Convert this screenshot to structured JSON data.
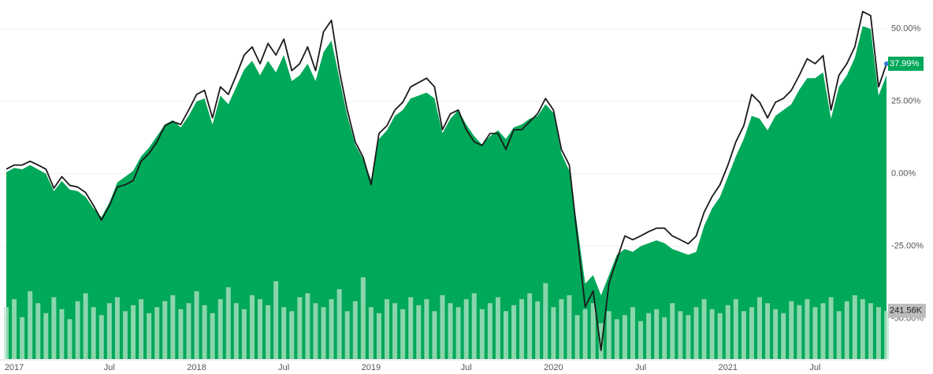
{
  "chart_data": {
    "type": "area_line_volume",
    "categories": [
      null,
      "2017",
      null,
      null,
      null,
      null,
      null,
      null,
      null,
      null,
      null,
      null,
      null,
      "Jul",
      null,
      null,
      null,
      null,
      null,
      null,
      null,
      null,
      null,
      null,
      "2018",
      null,
      null,
      null,
      null,
      null,
      null,
      null,
      null,
      null,
      null,
      "Jul",
      null,
      null,
      null,
      null,
      null,
      null,
      null,
      null,
      null,
      null,
      "2019",
      null,
      null,
      null,
      null,
      null,
      null,
      null,
      null,
      null,
      null,
      null,
      "Jul",
      null,
      null,
      null,
      null,
      null,
      null,
      null,
      null,
      null,
      null,
      "2020",
      null,
      null,
      null,
      null,
      null,
      null,
      null,
      null,
      null,
      null,
      "Jul",
      null,
      null,
      null,
      null,
      null,
      null,
      null,
      null,
      null,
      null,
      "2021",
      null,
      null,
      null,
      null,
      null,
      null,
      null,
      null,
      null,
      null,
      "Jul",
      null,
      null,
      null,
      null,
      null,
      null,
      null,
      null,
      null
    ],
    "series": [
      {
        "color": "#1a1a1a",
        "values": [
          1.6,
          3,
          3,
          4.3,
          3,
          1.6,
          -5,
          -1,
          -4,
          -4.6,
          -6.5,
          -11,
          -16,
          -11,
          -4.6,
          -3.8,
          -2.4,
          4.3,
          7,
          11,
          16.6,
          18,
          17,
          22,
          27.4,
          28.8,
          19.3,
          30,
          27.4,
          34,
          41,
          43.8,
          38,
          45,
          41,
          46.5,
          35.6,
          38,
          43.8,
          35.6,
          49,
          53,
          35.6,
          22,
          11,
          5.7,
          -3.8,
          13.9,
          16.6,
          22,
          24.7,
          30,
          31.5,
          33,
          30,
          15.2,
          20.7,
          22,
          15.2,
          11,
          9.8,
          13.9,
          13.9,
          8.4,
          15.2,
          15.2,
          18,
          20.7,
          26,
          22,
          8.4,
          3,
          -21.5,
          -46,
          -40.5,
          -61,
          -37.8,
          -29.6,
          -21.5,
          -22.8,
          -21.5,
          -20,
          -18.8,
          -18.8,
          -21.5,
          -22.8,
          -24.2,
          -21.5,
          -13.3,
          -7.9,
          -3.8,
          3,
          11,
          16.6,
          27.4,
          24.7,
          19.3,
          24.7,
          26,
          28.8,
          34,
          39.7,
          38,
          40.8,
          22,
          34,
          38,
          43.8,
          56,
          54.6,
          30,
          37.99
        ],
        "value_labels": [
          null,
          null,
          null,
          null,
          null,
          null,
          null,
          null,
          null,
          null,
          null,
          null,
          null,
          null,
          null,
          null,
          null,
          null,
          null,
          null,
          null,
          null,
          null,
          null,
          null,
          null,
          null,
          null,
          null,
          null,
          null,
          null,
          null,
          null,
          null,
          null,
          null,
          null,
          null,
          null,
          null,
          null,
          null,
          null,
          null,
          null,
          null,
          null,
          null,
          null,
          null,
          null,
          null,
          null,
          null,
          null,
          null,
          null,
          null,
          null,
          null,
          null,
          null,
          null,
          null,
          null,
          null,
          null,
          null,
          null,
          null,
          null,
          null,
          null,
          null,
          null,
          null,
          null,
          null,
          null,
          null,
          null,
          null,
          null,
          null,
          null,
          null,
          null,
          null,
          null,
          null,
          null,
          null,
          null,
          null,
          null,
          null,
          null,
          null,
          null,
          null,
          null,
          null,
          null,
          null,
          null,
          null,
          null,
          null,
          null,
          null,
          "37.99%"
        ]
      },
      {
        "color": "#00a859",
        "values": [
          0.5,
          2,
          1.5,
          3,
          1.5,
          0,
          -6,
          -2.5,
          -5.5,
          -6,
          -8,
          -12,
          -15,
          -10,
          -3,
          -1,
          1,
          6,
          9,
          13,
          17,
          18.5,
          16,
          20,
          25,
          26,
          17,
          27,
          24,
          30,
          36,
          39,
          34,
          39,
          35,
          41,
          32,
          34,
          38,
          32,
          42,
          46,
          33,
          20,
          10,
          5,
          -2,
          12,
          15,
          20,
          22,
          26,
          27,
          28,
          26,
          14,
          19,
          22,
          17,
          13,
          10,
          13,
          15,
          12,
          16,
          17,
          19,
          20,
          24,
          21,
          7,
          1,
          -18,
          -38,
          -35,
          -42,
          -35,
          -28,
          -26,
          -27,
          -25,
          -24,
          -23,
          -24,
          -26,
          -27,
          -28,
          -27,
          -18,
          -12,
          -8,
          -1,
          6,
          12,
          20,
          19,
          15,
          20,
          22,
          24,
          29,
          33,
          33,
          35,
          19,
          30,
          34,
          40,
          51,
          50,
          27,
          34
        ]
      }
    ],
    "volume": {
      "color": "#b8e6c8",
      "values": [
        260,
        300,
        210,
        340,
        280,
        230,
        310,
        250,
        200,
        290,
        330,
        260,
        220,
        280,
        310,
        240,
        270,
        300,
        230,
        260,
        290,
        320,
        250,
        280,
        340,
        270,
        230,
        300,
        360,
        280,
        250,
        320,
        300,
        270,
        390,
        260,
        240,
        310,
        330,
        280,
        260,
        300,
        350,
        240,
        290,
        410,
        260,
        230,
        300,
        280,
        250,
        310,
        270,
        300,
        240,
        320,
        280,
        260,
        300,
        330,
        250,
        280,
        310,
        240,
        270,
        300,
        330,
        290,
        380,
        260,
        300,
        320,
        220,
        250,
        280,
        180,
        240,
        200,
        220,
        260,
        190,
        230,
        250,
        210,
        280,
        240,
        220,
        260,
        300,
        250,
        230,
        270,
        300,
        240,
        260,
        310,
        280,
        250,
        230,
        290,
        270,
        300,
        260,
        280,
        310,
        240,
        290,
        320,
        300,
        280,
        260,
        241.56
      ],
      "value_labels": [
        null,
        null,
        null,
        null,
        null,
        null,
        null,
        null,
        null,
        null,
        null,
        null,
        null,
        null,
        null,
        null,
        null,
        null,
        null,
        null,
        null,
        null,
        null,
        null,
        null,
        null,
        null,
        null,
        null,
        null,
        null,
        null,
        null,
        null,
        null,
        null,
        null,
        null,
        null,
        null,
        null,
        null,
        null,
        null,
        null,
        null,
        null,
        null,
        null,
        null,
        null,
        null,
        null,
        null,
        null,
        null,
        null,
        null,
        null,
        null,
        null,
        null,
        null,
        null,
        null,
        null,
        null,
        null,
        null,
        null,
        null,
        null,
        null,
        null,
        null,
        null,
        null,
        null,
        null,
        null,
        null,
        null,
        null,
        null,
        null,
        null,
        null,
        null,
        null,
        null,
        null,
        null,
        null,
        null,
        null,
        null,
        null,
        null,
        null,
        null,
        null,
        null,
        null,
        null,
        null,
        null,
        null,
        null,
        null,
        null,
        null,
        "241.56K"
      ],
      "vlim": [
        0,
        1800
      ]
    },
    "ylim": [
      -64,
      60
    ],
    "yticks": [
      {
        "value": 50,
        "label": "50.00%"
      },
      {
        "value": 25,
        "label": "25.00%"
      },
      {
        "value": 0,
        "label": "0.00%"
      },
      {
        "value": -25,
        "label": "-25.00%"
      },
      {
        "value": -50,
        "label": "-50.00%"
      }
    ],
    "grid": true
  }
}
